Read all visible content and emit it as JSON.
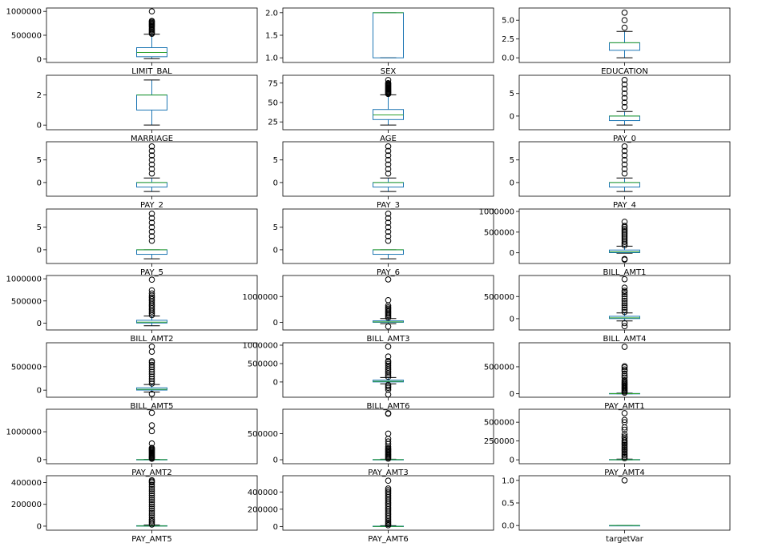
{
  "figure": {
    "colors": {
      "box": "#1f77b4",
      "median": "#2ca02c",
      "whisker": "#1f77b4",
      "flier": "#000000",
      "frame": "#000000"
    }
  },
  "chart_data": [
    {
      "type": "box",
      "label": "LIMIT_BAL",
      "ylim": [
        -20000,
        1020000
      ],
      "yticks": [
        0,
        500000,
        1000000
      ],
      "ytick_labels": [
        "0",
        "500000",
        "1000000"
      ],
      "box": {
        "q1": 50000,
        "median": 140000,
        "q3": 240000,
        "whislo": 10000,
        "whishi": 520000
      },
      "fliers": [
        530000,
        550000,
        570000,
        600000,
        620000,
        650000,
        680000,
        700000,
        720000,
        740000,
        760000,
        780000,
        800000,
        1000000
      ]
    },
    {
      "type": "box",
      "label": "SEX",
      "ylim": [
        0.95,
        2.05
      ],
      "yticks": [
        1.0,
        1.5,
        2.0
      ],
      "ytick_labels": [
        "1.0",
        "1.5",
        "2.0"
      ],
      "box": {
        "q1": 1,
        "median": 2,
        "q3": 2,
        "whislo": 1,
        "whishi": 2
      },
      "fliers": []
    },
    {
      "type": "box",
      "label": "EDUCATION",
      "ylim": [
        -0.3,
        6.3
      ],
      "yticks": [
        0.0,
        2.5,
        5.0
      ],
      "ytick_labels": [
        "0.0",
        "2.5",
        "5.0"
      ],
      "box": {
        "q1": 1,
        "median": 2,
        "q3": 2,
        "whislo": 0,
        "whishi": 3.5
      },
      "fliers": [
        4,
        5,
        6
      ]
    },
    {
      "type": "box",
      "label": "MARRIAGE",
      "ylim": [
        -0.15,
        3.15
      ],
      "yticks": [
        0,
        2
      ],
      "ytick_labels": [
        "0",
        "2"
      ],
      "box": {
        "q1": 1,
        "median": 2,
        "q3": 2,
        "whislo": 0,
        "whishi": 3
      },
      "fliers": []
    },
    {
      "type": "box",
      "label": "AGE",
      "ylim": [
        18,
        82
      ],
      "yticks": [
        25,
        50,
        75
      ],
      "ytick_labels": [
        "25",
        "50",
        "75"
      ],
      "box": {
        "q1": 28,
        "median": 34,
        "q3": 41,
        "whislo": 21,
        "whishi": 60
      },
      "fliers": [
        61,
        62,
        63,
        64,
        65,
        66,
        67,
        68,
        69,
        70,
        71,
        72,
        73,
        74,
        75,
        79
      ]
    },
    {
      "type": "box",
      "label": "PAY_0",
      "ylim": [
        -2.5,
        8.5
      ],
      "yticks": [
        0,
        5
      ],
      "ytick_labels": [
        "0",
        "5"
      ],
      "box": {
        "q1": -1,
        "median": 0,
        "q3": 0,
        "whislo": -2,
        "whishi": 1
      },
      "fliers": [
        2,
        3,
        4,
        5,
        6,
        7,
        8
      ]
    },
    {
      "type": "box",
      "label": "PAY_2",
      "ylim": [
        -2.5,
        8.5
      ],
      "yticks": [
        0,
        5
      ],
      "ytick_labels": [
        "0",
        "5"
      ],
      "box": {
        "q1": -1,
        "median": 0,
        "q3": 0,
        "whislo": -2,
        "whishi": 1
      },
      "fliers": [
        2,
        3,
        4,
        5,
        6,
        7,
        8
      ]
    },
    {
      "type": "box",
      "label": "PAY_3",
      "ylim": [
        -2.5,
        8.5
      ],
      "yticks": [
        0,
        5
      ],
      "ytick_labels": [
        "0",
        "5"
      ],
      "box": {
        "q1": -1,
        "median": 0,
        "q3": 0,
        "whislo": -2,
        "whishi": 1
      },
      "fliers": [
        2,
        3,
        4,
        5,
        6,
        7,
        8
      ]
    },
    {
      "type": "box",
      "label": "PAY_4",
      "ylim": [
        -2.5,
        8.5
      ],
      "yticks": [
        0,
        5
      ],
      "ytick_labels": [
        "0",
        "5"
      ],
      "box": {
        "q1": -1,
        "median": 0,
        "q3": 0,
        "whislo": -2,
        "whishi": 1
      },
      "fliers": [
        2,
        3,
        4,
        5,
        6,
        7,
        8
      ]
    },
    {
      "type": "box",
      "label": "PAY_5",
      "ylim": [
        -2.5,
        8.5
      ],
      "yticks": [
        0,
        5
      ],
      "ytick_labels": [
        "0",
        "5"
      ],
      "box": {
        "q1": -1,
        "median": 0,
        "q3": 0,
        "whislo": -2,
        "whishi": 0
      },
      "fliers": [
        2,
        3,
        4,
        5,
        6,
        7,
        8
      ]
    },
    {
      "type": "box",
      "label": "PAY_6",
      "ylim": [
        -2.5,
        8.5
      ],
      "yticks": [
        0,
        5
      ],
      "ytick_labels": [
        "0",
        "5"
      ],
      "box": {
        "q1": -1,
        "median": 0,
        "q3": 0,
        "whislo": -2,
        "whishi": 0
      },
      "fliers": [
        2,
        3,
        4,
        5,
        6,
        7,
        8
      ]
    },
    {
      "type": "box",
      "label": "BILL_AMT1",
      "ylim": [
        -200000,
        1000000
      ],
      "yticks": [
        0,
        500000,
        1000000
      ],
      "ytick_labels": [
        "0",
        "500000",
        "1000000"
      ],
      "box": {
        "q1": 3500,
        "median": 22000,
        "q3": 67000,
        "whislo": -10000,
        "whishi": 160000
      },
      "fliers": [
        180000,
        220000,
        260000,
        300000,
        340000,
        380000,
        420000,
        460000,
        500000,
        540000,
        580000,
        620000,
        650000,
        750000,
        -150000,
        -165000
      ]
    },
    {
      "type": "box",
      "label": "BILL_AMT2",
      "ylim": [
        -100000,
        1020000
      ],
      "yticks": [
        0,
        500000,
        1000000
      ],
      "ytick_labels": [
        "0",
        "500000",
        "1000000"
      ],
      "box": {
        "q1": 3000,
        "median": 21000,
        "q3": 64000,
        "whislo": -60000,
        "whishi": 160000
      },
      "fliers": [
        180000,
        220000,
        260000,
        300000,
        340000,
        380000,
        420000,
        460000,
        500000,
        540000,
        580000,
        620000,
        670000,
        740000,
        980000
      ]
    },
    {
      "type": "box",
      "label": "BILL_AMT3",
      "ylim": [
        -200000,
        1720000
      ],
      "yticks": [
        0,
        1000000
      ],
      "ytick_labels": [
        "0",
        "1000000"
      ],
      "box": {
        "q1": 2700,
        "median": 20000,
        "q3": 60000,
        "whislo": -50000,
        "whishi": 150000
      },
      "fliers": [
        180000,
        230000,
        280000,
        330000,
        380000,
        430000,
        480000,
        530000,
        580000,
        650000,
        860000,
        1660000,
        -160000
      ]
    },
    {
      "type": "box",
      "label": "BILL_AMT4",
      "ylim": [
        -200000,
        920000
      ],
      "yticks": [
        0,
        500000
      ],
      "ytick_labels": [
        "0",
        "500000"
      ],
      "box": {
        "q1": 2300,
        "median": 19000,
        "q3": 54000,
        "whislo": -50000,
        "whishi": 130000
      },
      "fliers": [
        150000,
        200000,
        250000,
        300000,
        350000,
        400000,
        450000,
        500000,
        550000,
        600000,
        630000,
        700000,
        890000,
        -100000,
        -170000
      ]
    },
    {
      "type": "box",
      "label": "BILL_AMT5",
      "ylim": [
        -100000,
        960000
      ],
      "yticks": [
        0,
        500000
      ],
      "ytick_labels": [
        "0",
        "500000"
      ],
      "box": {
        "q1": 1800,
        "median": 18000,
        "q3": 50000,
        "whislo": -40000,
        "whishi": 120000
      },
      "fliers": [
        140000,
        190000,
        240000,
        290000,
        340000,
        390000,
        440000,
        490000,
        540000,
        590000,
        620000,
        820000,
        930000,
        -80000
      ]
    },
    {
      "type": "box",
      "label": "BILL_AMT6",
      "ylim": [
        -350000,
        1000000
      ],
      "yticks": [
        0,
        500000,
        1000000
      ],
      "ytick_labels": [
        "0",
        "500000",
        "1000000"
      ],
      "box": {
        "q1": 1300,
        "median": 17000,
        "q3": 49000,
        "whislo": -50000,
        "whishi": 120000
      },
      "fliers": [
        140000,
        190000,
        240000,
        290000,
        340000,
        390000,
        440000,
        490000,
        540000,
        570000,
        690000,
        960000,
        -80000,
        -120000,
        -160000,
        -210000,
        -340000
      ]
    },
    {
      "type": "box",
      "label": "PAY_AMT1",
      "ylim": [
        -20000,
        900000
      ],
      "yticks": [
        0,
        500000
      ],
      "ytick_labels": [
        "0",
        "500000"
      ],
      "box": {
        "q1": 1000,
        "median": 2100,
        "q3": 5000,
        "whislo": 0,
        "whishi": 11000
      },
      "fliers": [
        20000,
        40000,
        60000,
        80000,
        100000,
        120000,
        140000,
        160000,
        180000,
        200000,
        220000,
        250000,
        300000,
        330000,
        370000,
        420000,
        450000,
        490000,
        510000,
        870000
      ]
    },
    {
      "type": "box",
      "label": "PAY_AMT2",
      "ylim": [
        -60000,
        1720000
      ],
      "yticks": [
        0,
        1000000
      ],
      "ytick_labels": [
        "0",
        "1000000"
      ],
      "box": {
        "q1": 800,
        "median": 2000,
        "q3": 5000,
        "whislo": 0,
        "whishi": 11000
      },
      "fliers": [
        30000,
        60000,
        90000,
        120000,
        150000,
        180000,
        210000,
        240000,
        270000,
        300000,
        330000,
        360000,
        390000,
        420000,
        580000,
        1020000,
        1230000,
        1680000
      ]
    },
    {
      "type": "box",
      "label": "PAY_AMT3",
      "ylim": [
        -30000,
        920000
      ],
      "yticks": [
        0,
        500000
      ],
      "ytick_labels": [
        "0",
        "500000"
      ],
      "box": {
        "q1": 400,
        "median": 1800,
        "q3": 4500,
        "whislo": 0,
        "whishi": 10500
      },
      "fliers": [
        20000,
        40000,
        60000,
        80000,
        100000,
        120000,
        140000,
        160000,
        180000,
        200000,
        220000,
        250000,
        300000,
        350000,
        400000,
        500000,
        880000,
        890000
      ]
    },
    {
      "type": "box",
      "label": "PAY_AMT4",
      "ylim": [
        -20000,
        640000
      ],
      "yticks": [
        0,
        250000,
        500000
      ],
      "ytick_labels": [
        "0",
        "250000",
        "500000"
      ],
      "box": {
        "q1": 300,
        "median": 1500,
        "q3": 4000,
        "whislo": 0,
        "whishi": 9600
      },
      "fliers": [
        20000,
        40000,
        60000,
        80000,
        100000,
        120000,
        140000,
        160000,
        180000,
        200000,
        220000,
        240000,
        260000,
        290000,
        310000,
        340000,
        400000,
        430000,
        500000,
        530000,
        620000
      ]
    },
    {
      "type": "box",
      "label": "PAY_AMT5",
      "ylim": [
        -15000,
        440000
      ],
      "yticks": [
        0,
        200000,
        400000
      ],
      "ytick_labels": [
        "0",
        "200000",
        "400000"
      ],
      "box": {
        "q1": 250,
        "median": 1500,
        "q3": 4000,
        "whislo": 0,
        "whishi": 9500
      },
      "fliers": [
        15000,
        30000,
        45000,
        60000,
        80000,
        100000,
        120000,
        140000,
        160000,
        180000,
        200000,
        220000,
        240000,
        260000,
        280000,
        300000,
        320000,
        340000,
        360000,
        380000,
        400000,
        410000,
        420000
      ]
    },
    {
      "type": "box",
      "label": "PAY_AMT6",
      "ylim": [
        -15000,
        560000
      ],
      "yticks": [
        0,
        200000,
        400000
      ],
      "ytick_labels": [
        "0",
        "200000",
        "400000"
      ],
      "box": {
        "q1": 100,
        "median": 1500,
        "q3": 4000,
        "whislo": 0,
        "whishi": 9600
      },
      "fliers": [
        15000,
        30000,
        45000,
        60000,
        80000,
        100000,
        120000,
        140000,
        160000,
        180000,
        200000,
        220000,
        240000,
        260000,
        280000,
        300000,
        320000,
        340000,
        360000,
        380000,
        400000,
        420000,
        440000,
        530000
      ]
    },
    {
      "type": "box",
      "label": "targetVar",
      "ylim": [
        -0.05,
        1.05
      ],
      "yticks": [
        0.0,
        0.5,
        1.0
      ],
      "ytick_labels": [
        "0.0",
        "0.5",
        "1.0"
      ],
      "box": {
        "q1": 0,
        "median": 0,
        "q3": 0,
        "whislo": 0,
        "whishi": 0
      },
      "fliers": [
        1
      ]
    }
  ]
}
